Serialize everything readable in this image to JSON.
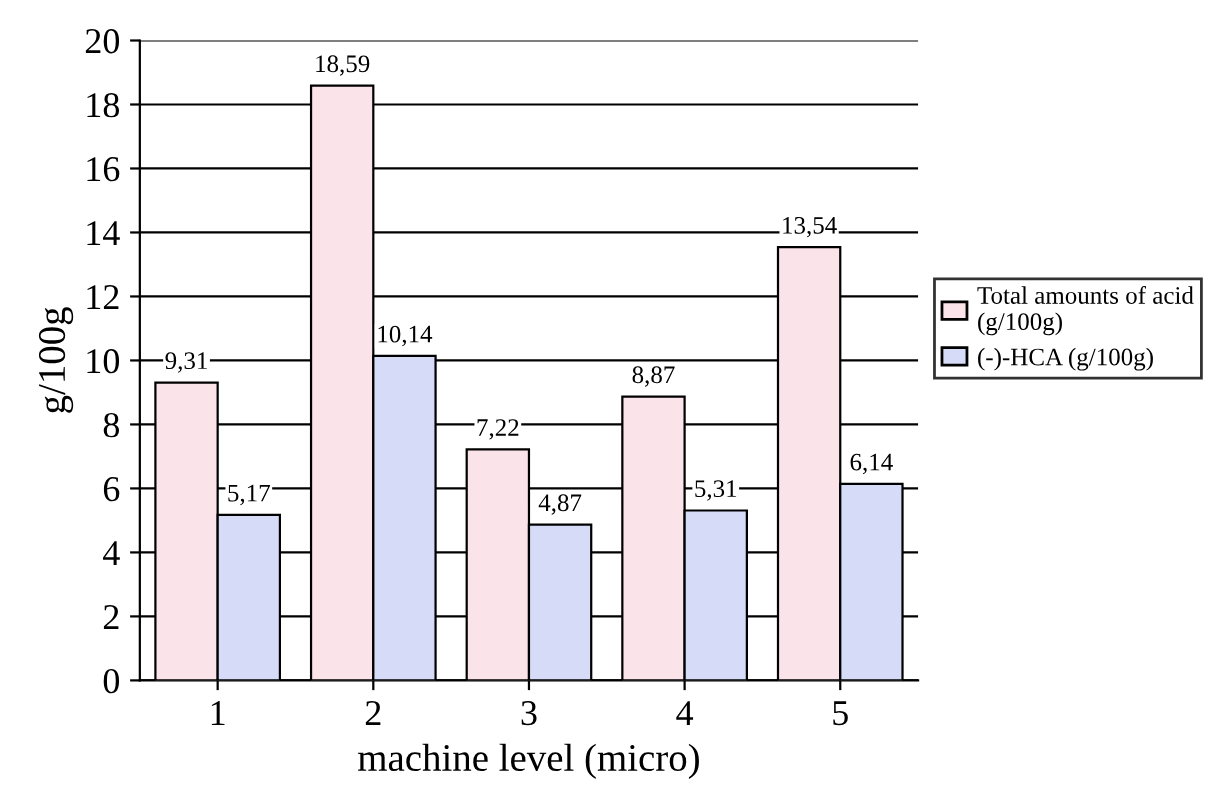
{
  "chart_data": {
    "type": "bar",
    "xlabel": "machine level (micro)",
    "ylabel": "g/100g",
    "categories": [
      "1",
      "2",
      "3",
      "4",
      "5"
    ],
    "series": [
      {
        "name": "Total amounts of acid (g/100g)",
        "color": "#fbe3ea",
        "values": [
          9.31,
          18.59,
          7.22,
          8.87,
          13.54
        ],
        "value_labels": [
          "9,31",
          "18,59",
          "7,22",
          "8,87",
          "13,54"
        ]
      },
      {
        "name": "(-)-HCA (g/100g)",
        "color": "#d6dcf8",
        "values": [
          5.17,
          10.14,
          4.87,
          5.31,
          6.14
        ],
        "value_labels": [
          "5,17",
          "10,14",
          "4,87",
          "5,31",
          "6,14"
        ]
      }
    ],
    "ylim": [
      0,
      20
    ],
    "yticks": [
      0,
      2,
      4,
      6,
      8,
      10,
      12,
      14,
      16,
      18,
      20
    ],
    "grid": "y",
    "legend": "right"
  }
}
